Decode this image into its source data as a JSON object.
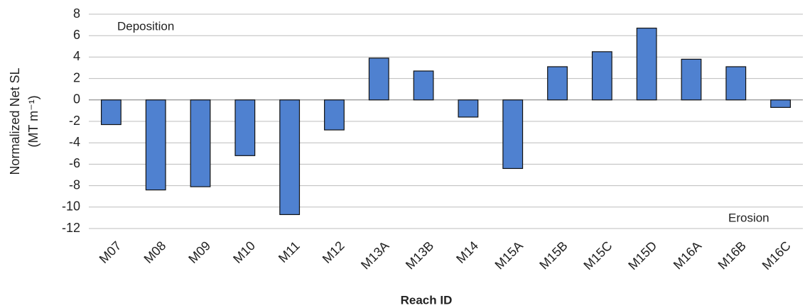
{
  "chart_data": {
    "type": "bar",
    "y_label": [
      "Normalized Net SL",
      "(MT m⁻¹)"
    ],
    "x_label": "Reach ID",
    "annotations": [
      "Deposition",
      "Erosion"
    ],
    "categories": [
      "M07",
      "M08",
      "M09",
      "M10",
      "M11",
      "M12",
      "M13A",
      "M13B",
      "M14",
      "M15A",
      "M15B",
      "M15C",
      "M15D",
      "M16A",
      "M16B",
      "M16C"
    ],
    "values": [
      -2.3,
      -8.4,
      -8.1,
      -5.2,
      -10.7,
      -2.8,
      3.9,
      2.7,
      -1.6,
      -6.4,
      3.1,
      4.5,
      6.7,
      3.8,
      3.1,
      -0.7
    ],
    "color": "#4f81d0",
    "ylim": [
      -12,
      8
    ],
    "yticks": [
      -12,
      -10,
      -8,
      -6,
      -4,
      -2,
      0,
      2,
      4,
      6,
      8
    ],
    "grid": true
  }
}
